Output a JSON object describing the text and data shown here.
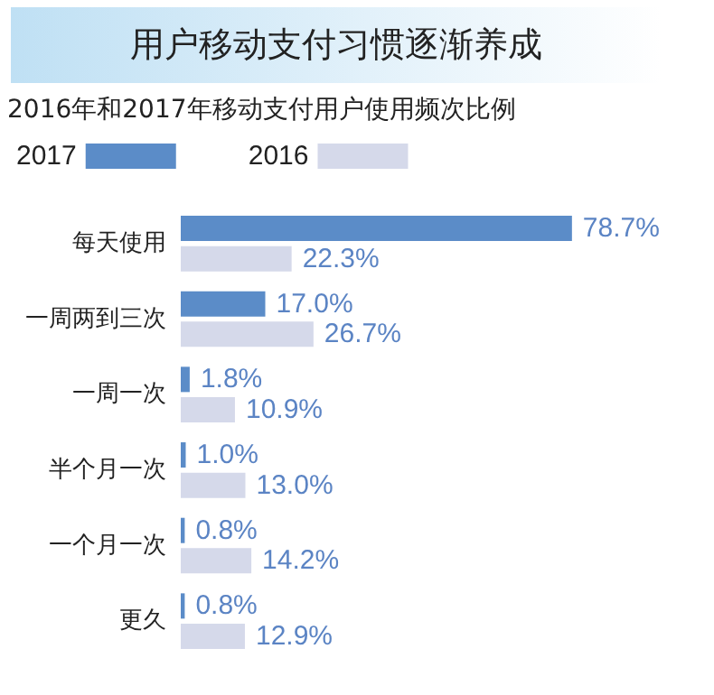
{
  "chart_data": {
    "type": "bar",
    "orientation": "horizontal",
    "title": "用户移动支付习惯逐渐养成",
    "subtitle": "2016年和2017年移动支付用户使用频次比例",
    "categories": [
      "每天使用",
      "一周两到三次",
      "一周一次",
      "半个月一次",
      "一个月一次",
      "更久"
    ],
    "series": [
      {
        "name": "2017",
        "color": "#5b8cc8",
        "values": [
          78.7,
          17.0,
          1.8,
          1.0,
          0.8,
          0.8
        ],
        "value_labels": [
          "78.7%",
          "17.0%",
          "1.8%",
          "1.0%",
          "0.8%",
          "0.8%"
        ]
      },
      {
        "name": "2016",
        "color": "#d5d9ea",
        "values": [
          22.3,
          26.7,
          10.9,
          13.0,
          14.2,
          12.9
        ],
        "value_labels": [
          "22.3%",
          "26.7%",
          "10.9%",
          "13.0%",
          "14.2%",
          "12.9%"
        ]
      }
    ],
    "legend": "top left",
    "grid": false
  }
}
